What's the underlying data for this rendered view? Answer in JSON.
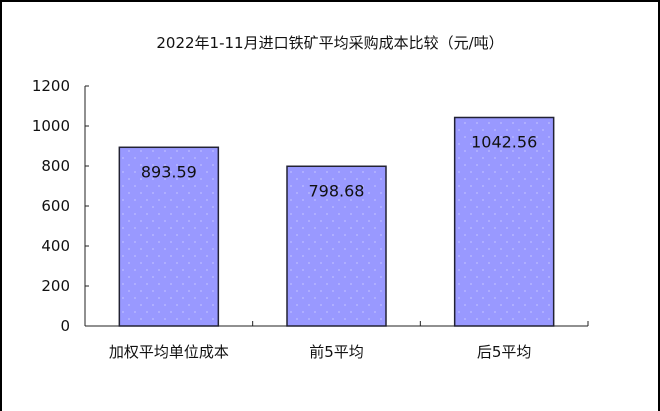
{
  "chart_data": {
    "type": "bar",
    "title": "2022年1-11月进口铁矿平均采购成本比较（元/吨）",
    "categories": [
      "加权平均单位成本",
      "前5平均",
      "后5平均"
    ],
    "values": [
      893.59,
      798.68,
      1042.56
    ],
    "data_labels": [
      "893.59",
      "798.68",
      "1042.56"
    ],
    "xlabel": "",
    "ylabel": "",
    "ylim": [
      0,
      1200
    ],
    "yticks": [
      0,
      200,
      400,
      600,
      800,
      1000,
      1200
    ],
    "grid": false,
    "legend": "none",
    "bar_color": "#9999ff",
    "bar_edge_color": "#222233"
  }
}
